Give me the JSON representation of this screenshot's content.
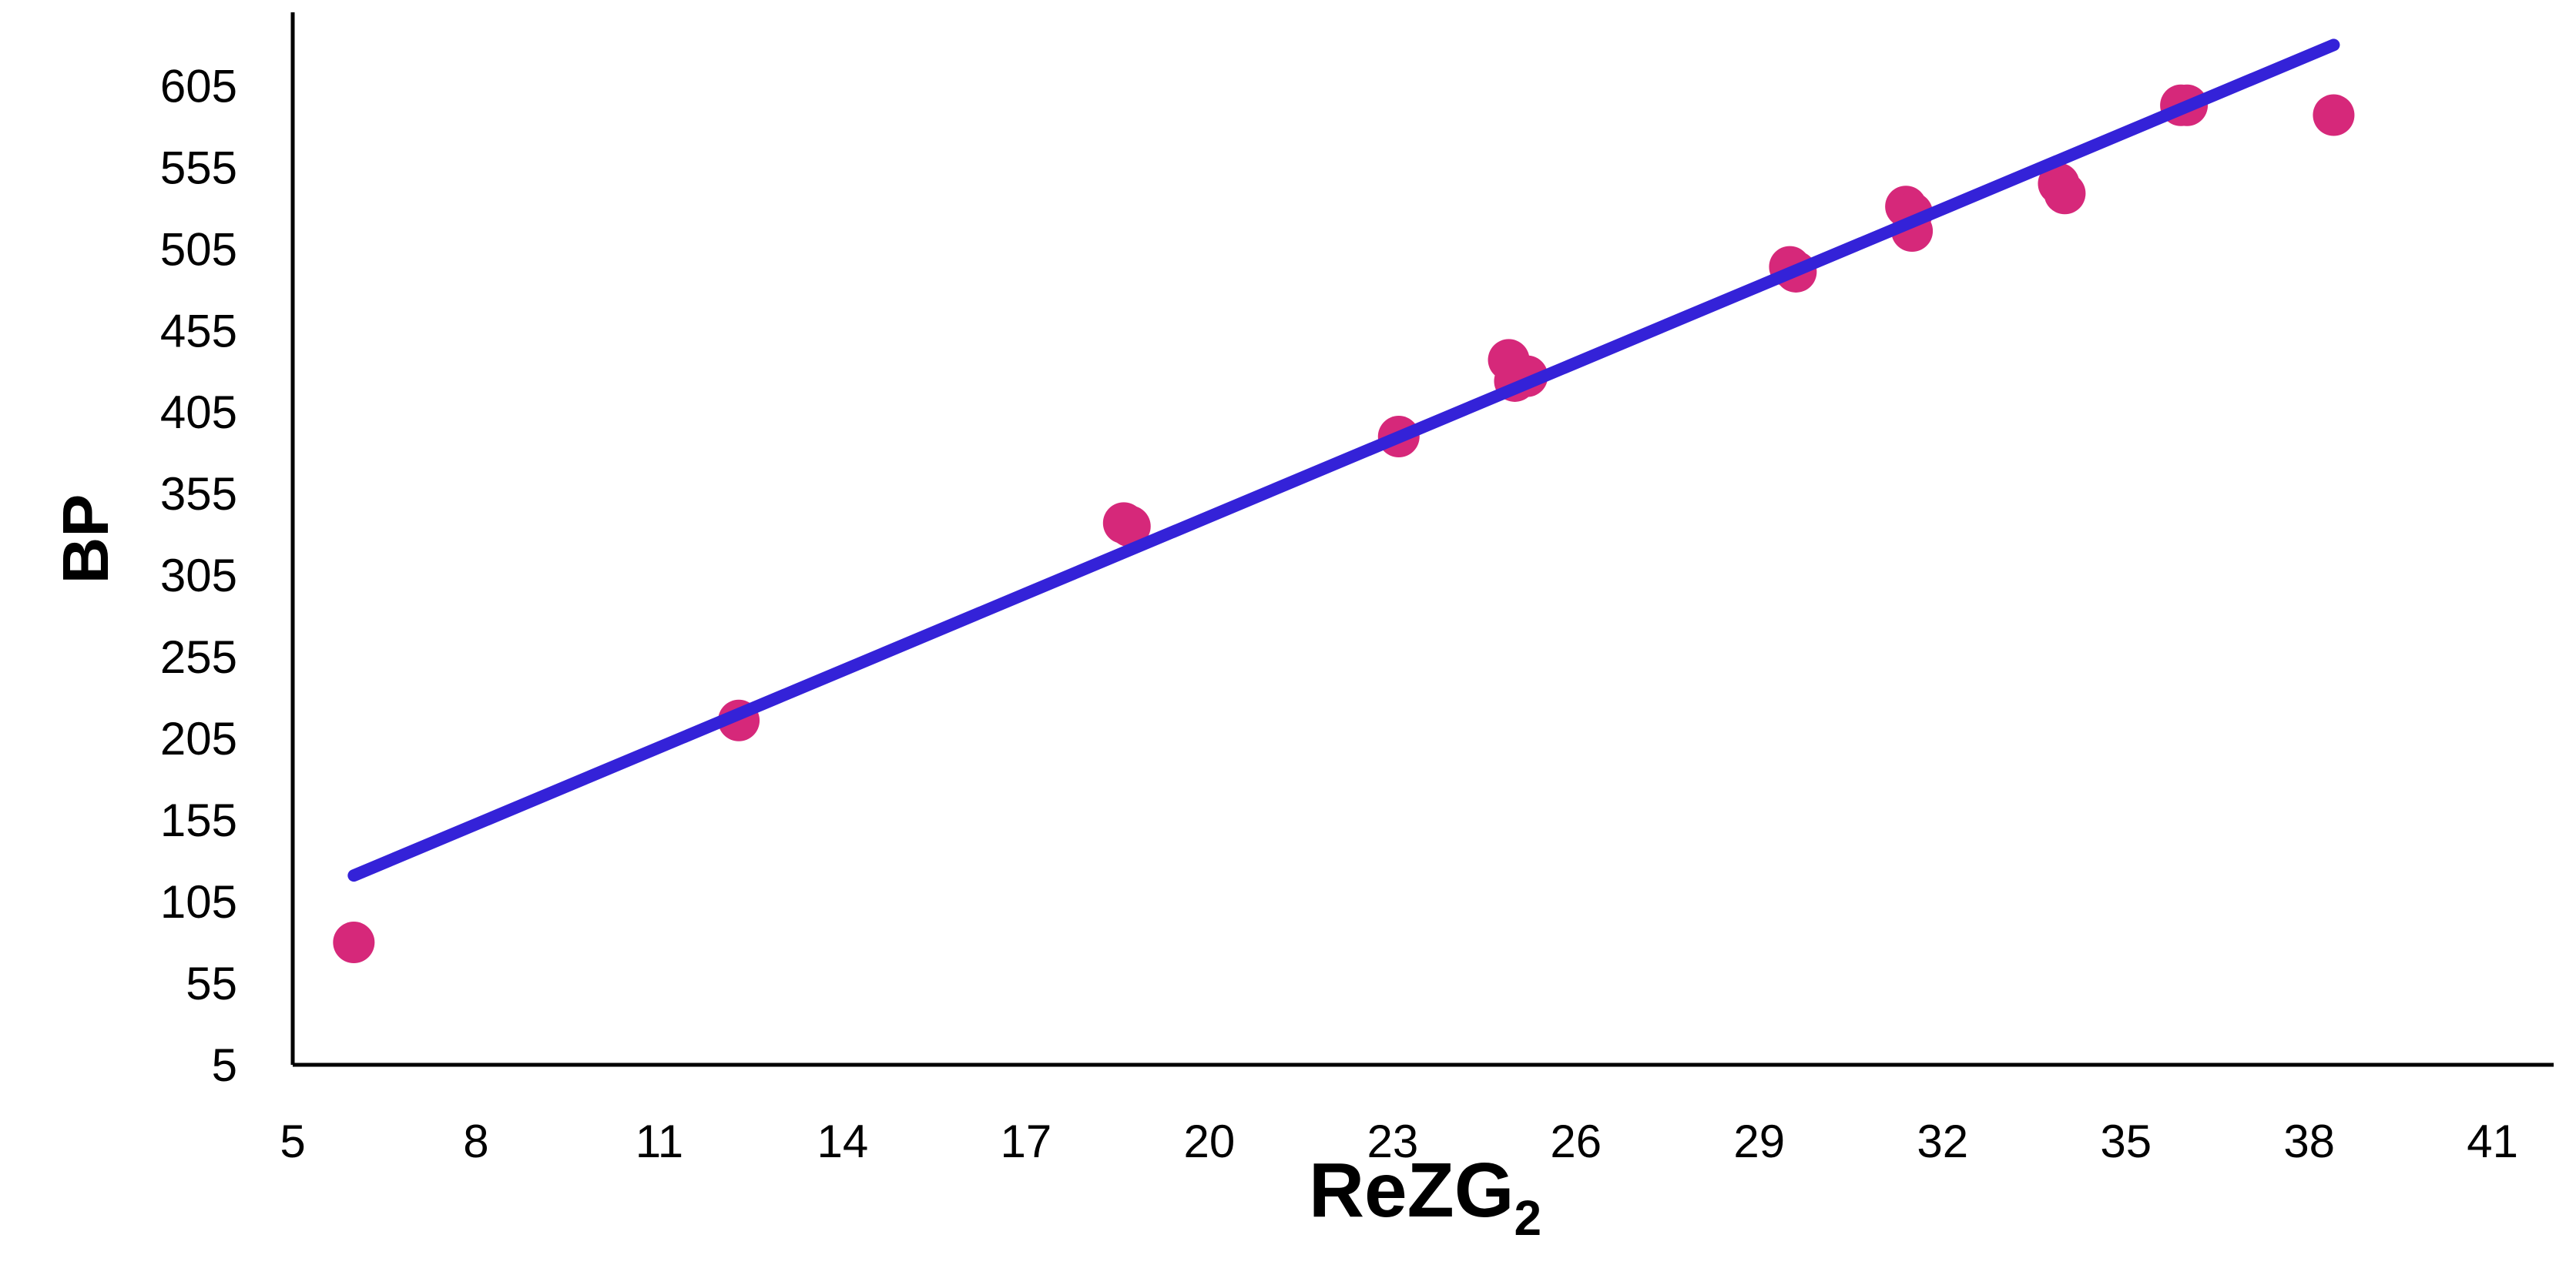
{
  "chart_data": {
    "type": "scatter",
    "xlabel": "ReZG",
    "xlabel_subscript": "2",
    "ylabel": "BP",
    "xlim": [
      5,
      42
    ],
    "ylim": [
      5,
      650
    ],
    "x_ticks": [
      5,
      8,
      11,
      14,
      17,
      20,
      23,
      26,
      29,
      32,
      35,
      38,
      41
    ],
    "y_ticks": [
      5,
      55,
      105,
      155,
      205,
      255,
      305,
      355,
      405,
      455,
      505,
      555,
      605
    ],
    "grid": false,
    "legend": "none",
    "colors": {
      "points": "#d6287a",
      "trendline": "#3422d8",
      "axes": "#000000"
    },
    "series": [
      {
        "type": "scatter",
        "points": [
          {
            "x": 6.0,
            "y": 80
          },
          {
            "x": 12.3,
            "y": 216
          },
          {
            "x": 18.6,
            "y": 337
          },
          {
            "x": 18.7,
            "y": 335
          },
          {
            "x": 23.1,
            "y": 390
          },
          {
            "x": 24.9,
            "y": 437
          },
          {
            "x": 25.0,
            "y": 424
          },
          {
            "x": 25.2,
            "y": 427
          },
          {
            "x": 29.5,
            "y": 494
          },
          {
            "x": 29.6,
            "y": 491
          },
          {
            "x": 31.4,
            "y": 531
          },
          {
            "x": 31.5,
            "y": 527
          },
          {
            "x": 31.5,
            "y": 516
          },
          {
            "x": 33.9,
            "y": 545
          },
          {
            "x": 34.0,
            "y": 539
          },
          {
            "x": 35.9,
            "y": 593
          },
          {
            "x": 36.0,
            "y": 593
          },
          {
            "x": 38.4,
            "y": 587
          }
        ]
      },
      {
        "type": "line",
        "points": [
          {
            "x": 6.0,
            "y": 121
          },
          {
            "x": 38.4,
            "y": 630
          }
        ]
      }
    ]
  }
}
